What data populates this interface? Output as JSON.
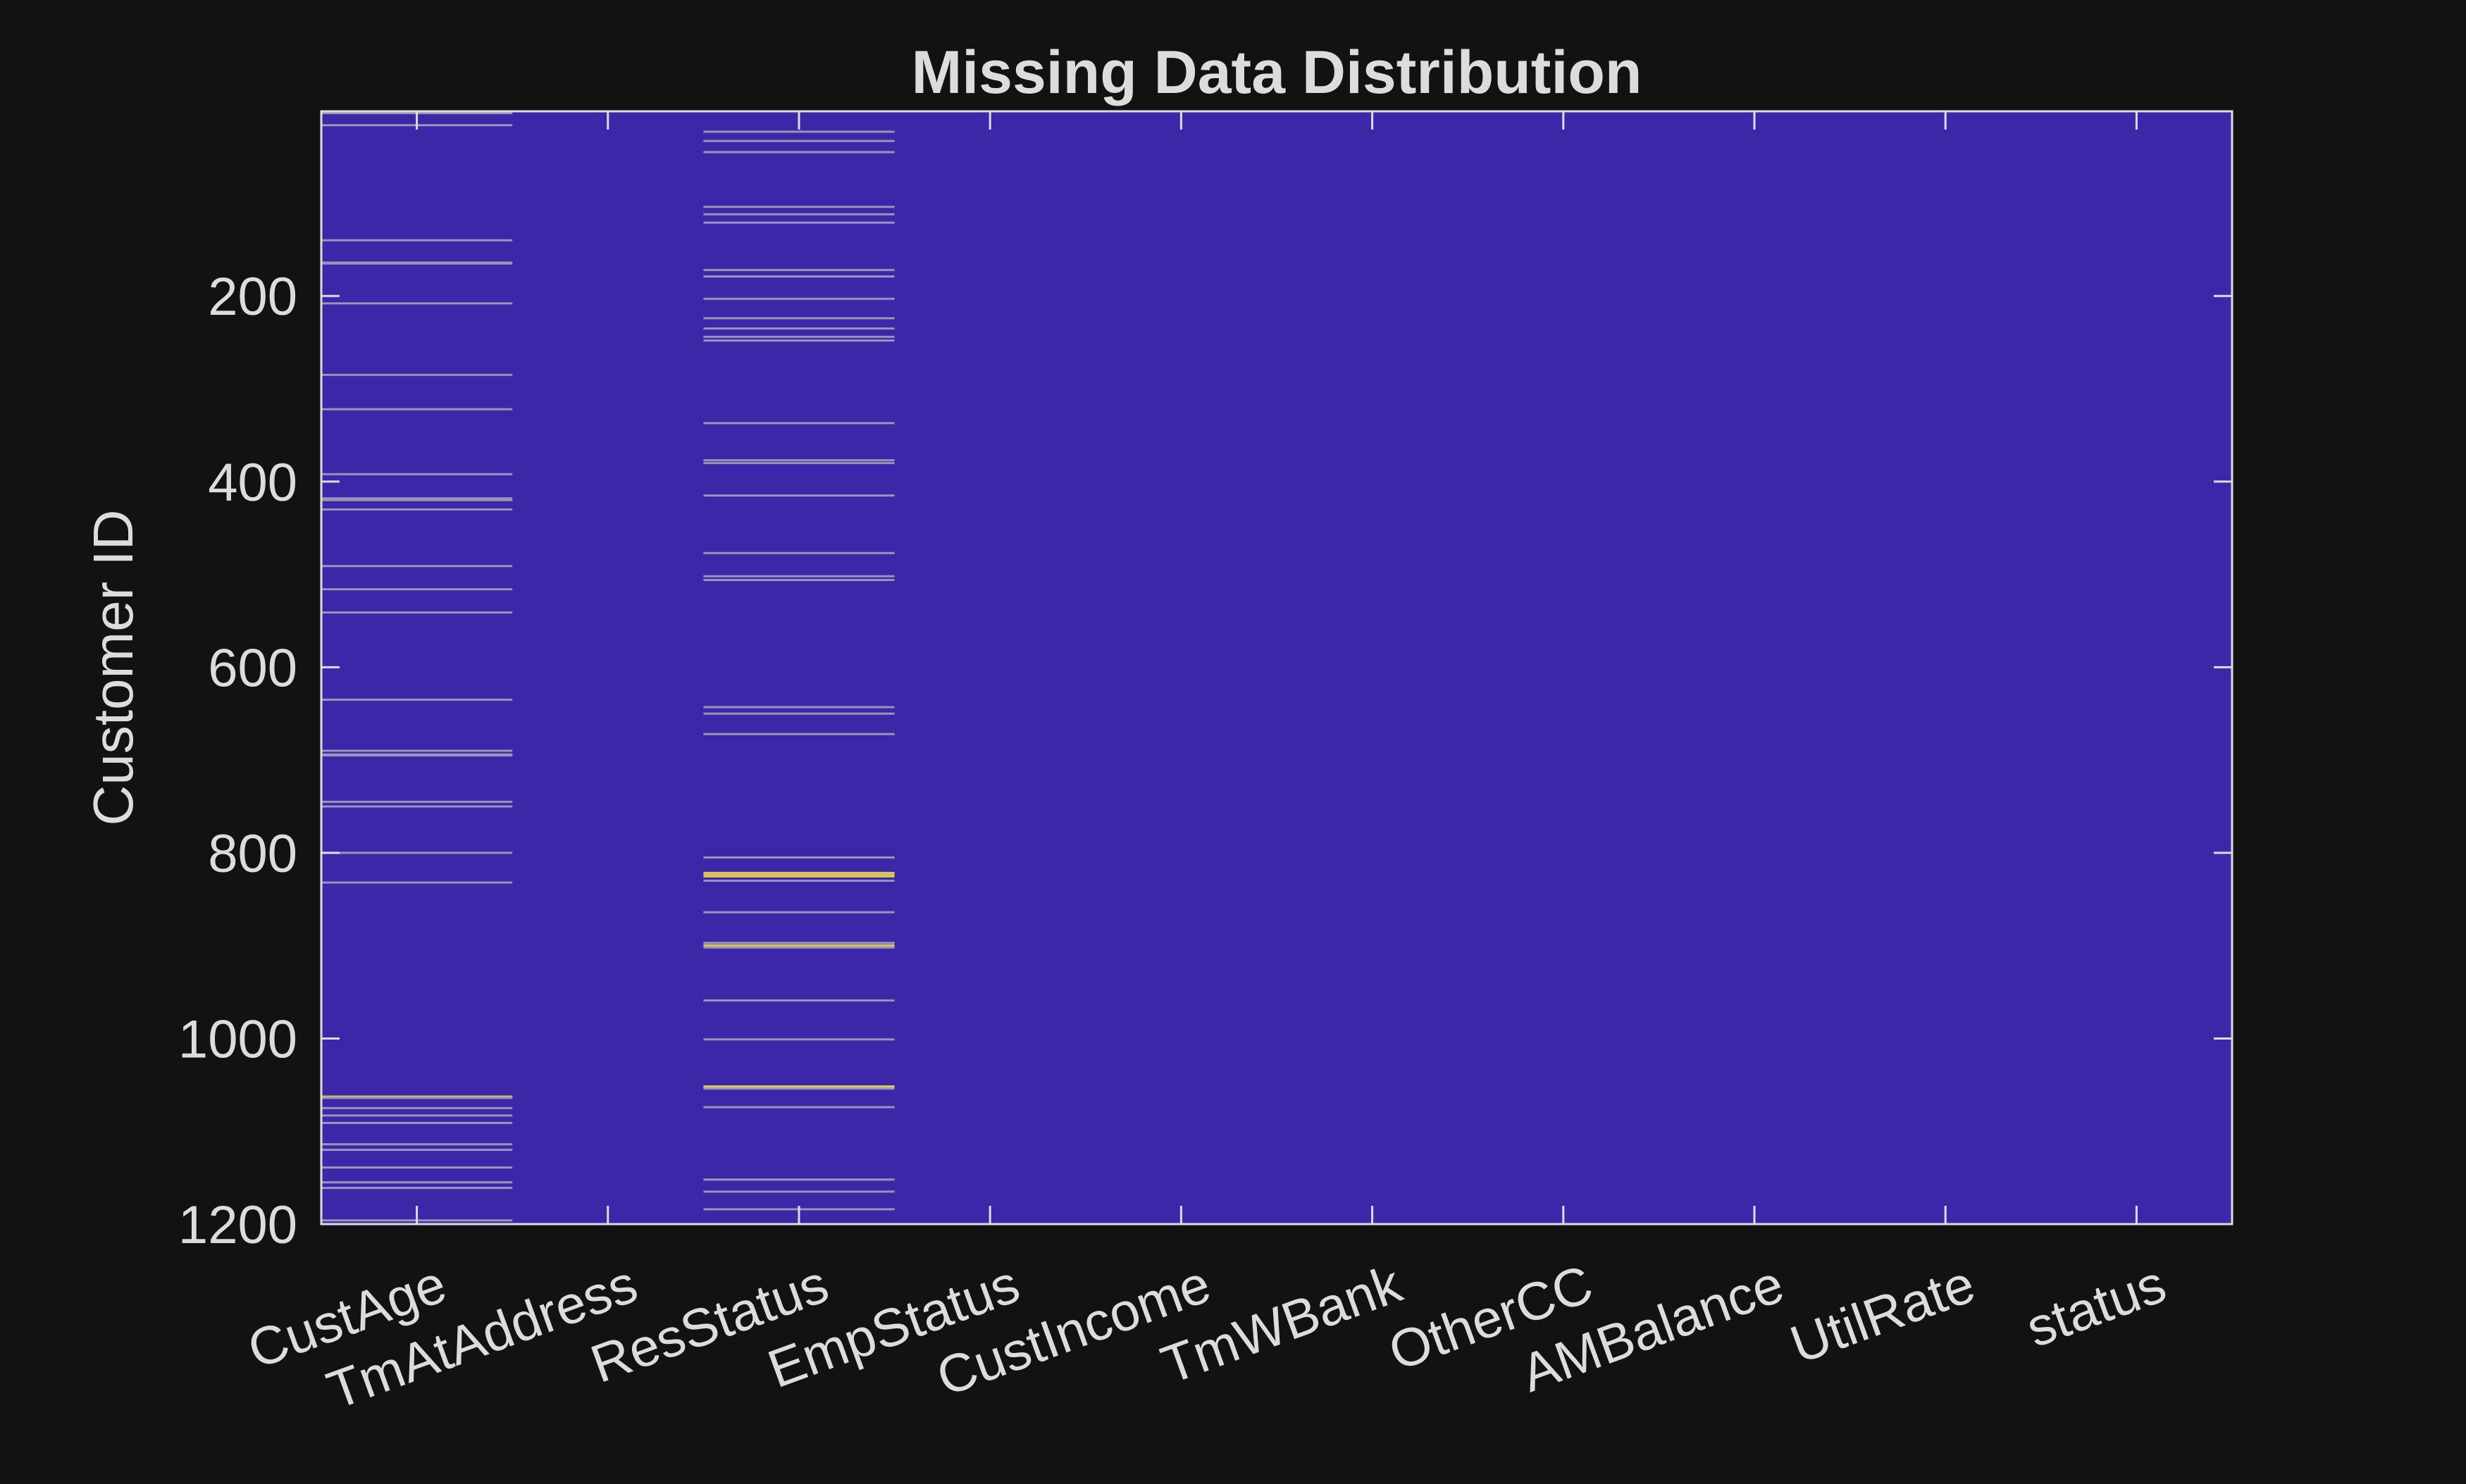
{
  "chart_data": {
    "type": "heatmap",
    "title": "Missing Data Distribution",
    "xlabel": "",
    "ylabel": "Customer ID",
    "categories": [
      "CustAge",
      "TmAtAddress",
      "ResStatus",
      "EmpStatus",
      "CustIncome",
      "TmWBank",
      "OtherCC",
      "AMBalance",
      "UtilRate",
      "status"
    ],
    "y_ticks": [
      200,
      400,
      600,
      800,
      1000,
      1200
    ],
    "ylim": [
      1,
      1200
    ],
    "y_reversed": true,
    "colors": {
      "present": "#3b27a8",
      "missing_light": "#9b94b8",
      "missing_bright": "#d8c85a",
      "background": "#121212",
      "text": "#dcdcdc"
    },
    "missing": {
      "CustAge": [
        3,
        16,
        140,
        164,
        165,
        208,
        285,
        322,
        392,
        418,
        420,
        430,
        491,
        516,
        541,
        635,
        690,
        694,
        695,
        745,
        750,
        800,
        832,
        1063,
        1064,
        1075,
        1083,
        1091,
        1114,
        1120,
        1139,
        1155,
        1161,
        1196
      ],
      "TmAtAddress": [],
      "ResStatus": [
        23,
        33,
        45,
        104,
        112,
        121,
        172,
        179,
        203,
        224,
        235,
        244,
        248,
        337,
        377,
        380,
        415,
        477,
        502,
        506,
        643,
        650,
        672,
        805,
        822,
        825,
        830,
        864,
        897,
        900,
        902,
        959,
        1001,
        1052,
        1054,
        1074,
        1152,
        1165,
        1184
      ],
      "EmpStatus": [],
      "CustIncome": [],
      "TmWBank": [],
      "OtherCC": [],
      "AMBalance": [],
      "UtilRate": [],
      "status": []
    },
    "bright_rows": {
      "CustAge": [
        1063
      ],
      "ResStatus": [
        822,
        825,
        900,
        1052
      ]
    },
    "grid": false,
    "legend": "none"
  }
}
